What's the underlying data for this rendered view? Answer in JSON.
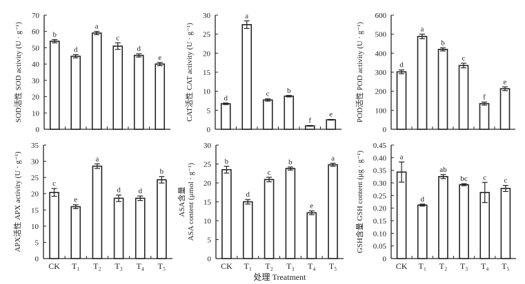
{
  "chart_data": [
    {
      "type": "bar",
      "id": "sod",
      "ylabel": "SOD活性 SOD activity (U · g⁻¹)",
      "ylim": [
        0,
        70
      ],
      "yticks": [
        0,
        10,
        20,
        30,
        40,
        50,
        60,
        70
      ],
      "tick_labels": [
        "0",
        "10",
        "20",
        "30",
        "40",
        "50",
        "60",
        "70"
      ],
      "categories": [
        "CK",
        "T₁",
        "T₂",
        "T₃",
        "T₄",
        "T₅"
      ],
      "values": [
        54,
        44.8,
        59,
        51,
        45.3,
        40
      ],
      "errors": [
        1,
        1,
        1,
        2,
        1,
        1
      ],
      "letters": [
        "b",
        "d",
        "a",
        "c",
        "d",
        "e"
      ]
    },
    {
      "type": "bar",
      "id": "cat",
      "ylabel": "CAT活性 CAT activity (U · g⁻¹)",
      "ylim": [
        0,
        30
      ],
      "yticks": [
        0,
        5,
        10,
        15,
        20,
        25,
        30
      ],
      "tick_labels": [
        "0",
        "5",
        "10",
        "15",
        "20",
        "25",
        "30"
      ],
      "categories": [
        "CK",
        "T₁",
        "T₂",
        "T₃",
        "T₄",
        "T₅"
      ],
      "values": [
        6.7,
        27.5,
        7.7,
        8.7,
        0.9,
        2.5
      ],
      "errors": [
        0.2,
        1,
        0.3,
        0.2,
        0.1,
        0.1
      ],
      "letters": [
        "d",
        "a",
        "c",
        "b",
        "f",
        "e"
      ]
    },
    {
      "type": "bar",
      "id": "pod",
      "ylabel": "POD活性 POD activity (U · g⁻¹)",
      "ylim": [
        0,
        600
      ],
      "yticks": [
        0,
        100,
        200,
        300,
        400,
        500,
        600
      ],
      "tick_labels": [
        "0",
        "100",
        "200",
        "300",
        "400",
        "500",
        "600"
      ],
      "categories": [
        "CK",
        "T₁",
        "T₂",
        "T₃",
        "T₄",
        "T₅"
      ],
      "values": [
        302,
        488,
        420,
        335,
        135,
        213
      ],
      "errors": [
        10,
        12,
        8,
        12,
        8,
        10
      ],
      "letters": [
        "d",
        "a",
        "b",
        "c",
        "f",
        "e"
      ]
    },
    {
      "type": "bar",
      "id": "apx",
      "ylabel": "APX活性 APX activity (U · g⁻¹)",
      "ylim": [
        0,
        35
      ],
      "yticks": [
        0,
        5,
        10,
        15,
        20,
        25,
        30,
        35
      ],
      "tick_labels": [
        "0",
        "5",
        "10",
        "15",
        "20",
        "25",
        "30",
        "35"
      ],
      "categories": [
        "CK",
        "T₁",
        "T₂",
        "T₃",
        "T₄",
        "T₅"
      ],
      "values": [
        20.4,
        16,
        28.5,
        18.6,
        18.6,
        24.3
      ],
      "errors": [
        1.2,
        0.6,
        0.7,
        1,
        0.7,
        1
      ],
      "letters": [
        "c",
        "e",
        "a",
        "d",
        "d",
        "b"
      ]
    },
    {
      "type": "bar",
      "id": "asa",
      "ylabel": "ASA content (μmol · g⁻¹)",
      "ylabel_cn": "ASA含量",
      "xlabel": "处理 Treatment",
      "ylim": [
        0,
        30
      ],
      "yticks": [
        0,
        5,
        10,
        15,
        20,
        25,
        30
      ],
      "tick_labels": [
        "0",
        "5",
        "10",
        "15",
        "20",
        "25",
        "30"
      ],
      "categories": [
        "CK",
        "T₁",
        "T₂",
        "T₃",
        "T₄",
        "T₅"
      ],
      "values": [
        23.5,
        15,
        20.9,
        23.8,
        12.1,
        24.8
      ],
      "errors": [
        0.9,
        0.6,
        0.6,
        0.4,
        0.5,
        0.4
      ],
      "letters": [
        "b",
        "d",
        "c",
        "b",
        "e",
        "a"
      ]
    },
    {
      "type": "bar",
      "id": "gsh",
      "ylabel": "GSH含量 GSH content (μg · g⁻¹)",
      "ylim": [
        0,
        0.45
      ],
      "yticks": [
        0,
        0.05,
        0.1,
        0.15,
        0.2,
        0.25,
        0.3,
        0.35,
        0.4,
        0.45
      ],
      "tick_labels": [
        "0",
        "0.05",
        "0.10",
        "0.15",
        "0.20",
        "0.25",
        "0.30",
        "0.35",
        "0.40",
        "0.45"
      ],
      "categories": [
        "CK",
        "T₁",
        "T₂",
        "T₃",
        "T₄",
        "T₅"
      ],
      "values": [
        0.343,
        0.212,
        0.325,
        0.293,
        0.262,
        0.278
      ],
      "errors": [
        0.04,
        0.004,
        0.008,
        0.004,
        0.04,
        0.012
      ],
      "letters": [
        "a",
        "d",
        "ab",
        "bc",
        "c",
        "c"
      ]
    }
  ]
}
